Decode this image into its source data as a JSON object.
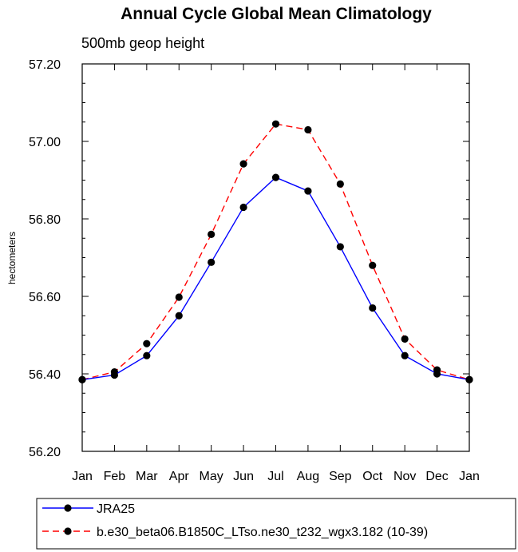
{
  "chart_data": {
    "type": "line",
    "title": "Annual Cycle Global Mean Climatology",
    "subtitle": "500mb geop height",
    "ylabel": "hectometers",
    "xlabel": "",
    "categories": [
      "Jan",
      "Feb",
      "Mar",
      "Apr",
      "May",
      "Jun",
      "Jul",
      "Aug",
      "Sep",
      "Oct",
      "Nov",
      "Dec",
      "Jan"
    ],
    "ylim": [
      56.2,
      57.2
    ],
    "yticks": [
      "56.20",
      "56.40",
      "56.60",
      "56.80",
      "57.00",
      "57.20"
    ],
    "ytick_values": [
      56.2,
      56.4,
      56.6,
      56.8,
      57.0,
      57.2
    ],
    "grid": false,
    "legend_position": "bottom",
    "series": [
      {
        "name": "JRA25",
        "color": "#0000ff",
        "dash": "solid",
        "values": [
          56.385,
          56.397,
          56.447,
          56.55,
          56.688,
          56.83,
          56.907,
          56.872,
          56.728,
          56.57,
          56.447,
          56.4,
          56.385
        ]
      },
      {
        "name": "b.e30_beta06.B1850C_LTso.ne30_t232_wgx3.182 (10-39)",
        "color": "#ff0000",
        "dash": "dashed",
        "values": [
          56.385,
          56.405,
          56.478,
          56.598,
          56.76,
          56.942,
          57.045,
          57.03,
          56.89,
          56.68,
          56.49,
          56.41,
          56.385
        ]
      }
    ]
  }
}
